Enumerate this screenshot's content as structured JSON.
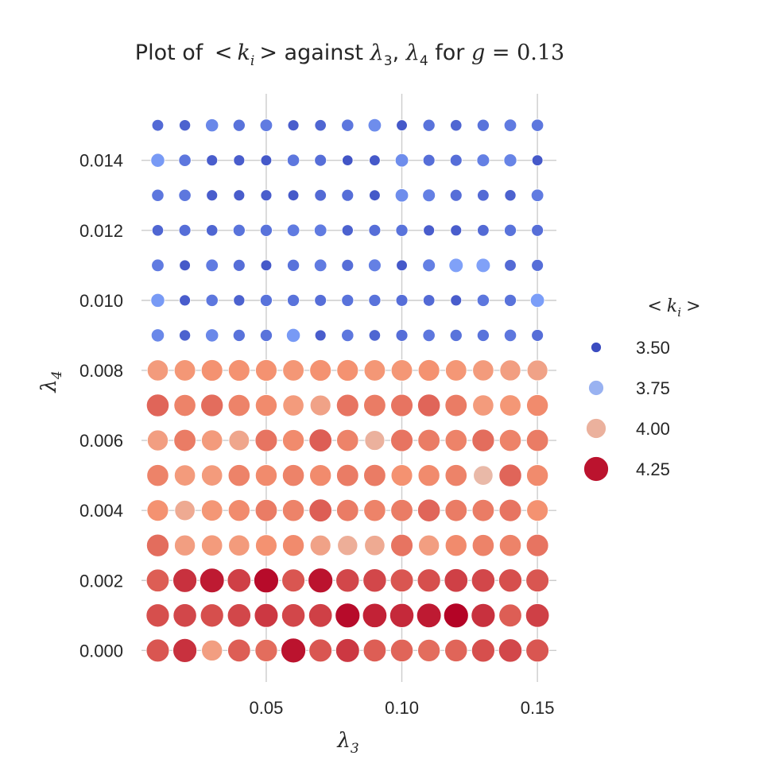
{
  "chart_data": {
    "type": "scatter",
    "title": "Plot of < k_i > against λ_3, λ_4 for g = 0.13",
    "title_parts": {
      "prefix": "Plot of ",
      "lt": "<",
      "k": "k",
      "i": "i",
      "gt": ">",
      "against": " against ",
      "l3": "λ",
      "sub3": "3",
      "comma": ", ",
      "l4": "λ",
      "sub4": "4",
      "for": " for ",
      "g": "g",
      "eq": " = 0.13"
    },
    "xlabel": {
      "symbol": "λ",
      "sub": "3"
    },
    "ylabel": {
      "symbol": "λ",
      "sub": "4"
    },
    "xlim": [
      0.004,
      0.157
    ],
    "ylim": [
      -0.0009,
      0.0159
    ],
    "x_ticks": [
      0.05,
      0.1,
      0.15
    ],
    "x_tick_labels": [
      "0.05",
      "0.10",
      "0.15"
    ],
    "y_ticks": [
      0.0,
      0.002,
      0.004,
      0.006,
      0.008,
      0.01,
      0.012,
      0.014
    ],
    "y_tick_labels": [
      "0.000",
      "0.002",
      "0.004",
      "0.006",
      "0.008",
      "0.010",
      "0.012",
      "0.014"
    ],
    "grid": true,
    "x": [
      0.01,
      0.02,
      0.03,
      0.04,
      0.05,
      0.06,
      0.07,
      0.08,
      0.09,
      0.1,
      0.11,
      0.12,
      0.13,
      0.14,
      0.15
    ],
    "y": [
      0.0,
      0.001,
      0.002,
      0.003,
      0.004,
      0.005,
      0.006,
      0.007,
      0.008,
      0.009,
      0.01,
      0.011,
      0.012,
      0.013,
      0.014,
      0.015
    ],
    "values": [
      [
        4.16,
        4.21,
        4.05,
        4.15,
        4.13,
        4.25,
        4.16,
        4.2,
        4.15,
        4.14,
        4.13,
        4.14,
        4.17,
        4.18,
        4.16
      ],
      [
        4.17,
        4.18,
        4.17,
        4.18,
        4.2,
        4.18,
        4.19,
        4.26,
        4.23,
        4.22,
        4.24,
        4.27,
        4.21,
        4.15,
        4.19
      ],
      [
        4.15,
        4.21,
        4.24,
        4.19,
        4.26,
        4.16,
        4.25,
        4.18,
        4.18,
        4.16,
        4.17,
        4.19,
        4.18,
        4.17,
        4.16
      ],
      [
        4.13,
        4.05,
        4.06,
        4.06,
        4.08,
        4.09,
        4.04,
        4.01,
        4.02,
        4.12,
        4.05,
        4.09,
        4.1,
        4.1,
        4.12
      ],
      [
        4.08,
        4.02,
        4.07,
        4.09,
        4.11,
        4.1,
        4.15,
        4.11,
        4.1,
        4.11,
        4.14,
        4.11,
        4.11,
        4.12,
        4.08
      ],
      [
        4.1,
        4.06,
        4.06,
        4.1,
        4.09,
        4.1,
        4.09,
        4.11,
        4.11,
        4.08,
        4.09,
        4.1,
        3.98,
        4.14,
        4.09
      ],
      [
        4.05,
        4.11,
        4.06,
        4.03,
        4.12,
        4.09,
        4.15,
        4.1,
        4.0,
        4.12,
        4.11,
        4.1,
        4.13,
        4.1,
        4.11
      ],
      [
        4.14,
        4.1,
        4.13,
        4.1,
        4.09,
        4.06,
        4.04,
        4.12,
        4.11,
        4.12,
        4.14,
        4.11,
        4.06,
        4.07,
        4.09
      ],
      [
        4.06,
        4.07,
        4.08,
        4.08,
        4.08,
        4.07,
        4.08,
        4.08,
        4.07,
        4.07,
        4.08,
        4.07,
        4.06,
        4.05,
        4.04
      ],
      [
        3.64,
        3.55,
        3.64,
        3.59,
        3.59,
        3.68,
        3.54,
        3.6,
        3.56,
        3.58,
        3.6,
        3.59,
        3.59,
        3.6,
        3.58
      ],
      [
        3.68,
        3.54,
        3.6,
        3.55,
        3.59,
        3.59,
        3.58,
        3.59,
        3.59,
        3.58,
        3.57,
        3.54,
        3.6,
        3.59,
        3.69
      ],
      [
        3.61,
        3.53,
        3.61,
        3.58,
        3.53,
        3.59,
        3.61,
        3.58,
        3.62,
        3.53,
        3.62,
        3.7,
        3.7,
        3.57,
        3.58
      ],
      [
        3.56,
        3.58,
        3.56,
        3.59,
        3.59,
        3.61,
        3.61,
        3.55,
        3.58,
        3.59,
        3.54,
        3.54,
        3.57,
        3.59,
        3.58
      ],
      [
        3.6,
        3.6,
        3.54,
        3.54,
        3.54,
        3.53,
        3.57,
        3.58,
        3.53,
        3.65,
        3.62,
        3.58,
        3.57,
        3.55,
        3.61
      ],
      [
        3.68,
        3.6,
        3.54,
        3.54,
        3.53,
        3.6,
        3.58,
        3.52,
        3.53,
        3.65,
        3.58,
        3.58,
        3.62,
        3.63,
        3.53
      ],
      [
        3.57,
        3.55,
        3.64,
        3.59,
        3.61,
        3.54,
        3.56,
        3.6,
        3.65,
        3.53,
        3.59,
        3.56,
        3.59,
        3.61,
        3.6
      ]
    ],
    "hue_range": [
      3.5,
      4.27
    ],
    "legend": {
      "title": {
        "lt": "<",
        "k": "k",
        "i": "i",
        "gt": ">"
      },
      "placement": "right",
      "entries": [
        {
          "label": "3.50",
          "value": 3.5
        },
        {
          "label": "3.75",
          "value": 3.75
        },
        {
          "label": "4.00",
          "value": 4.0
        },
        {
          "label": "4.25",
          "value": 4.25
        }
      ]
    },
    "colormap": "coolwarm"
  }
}
